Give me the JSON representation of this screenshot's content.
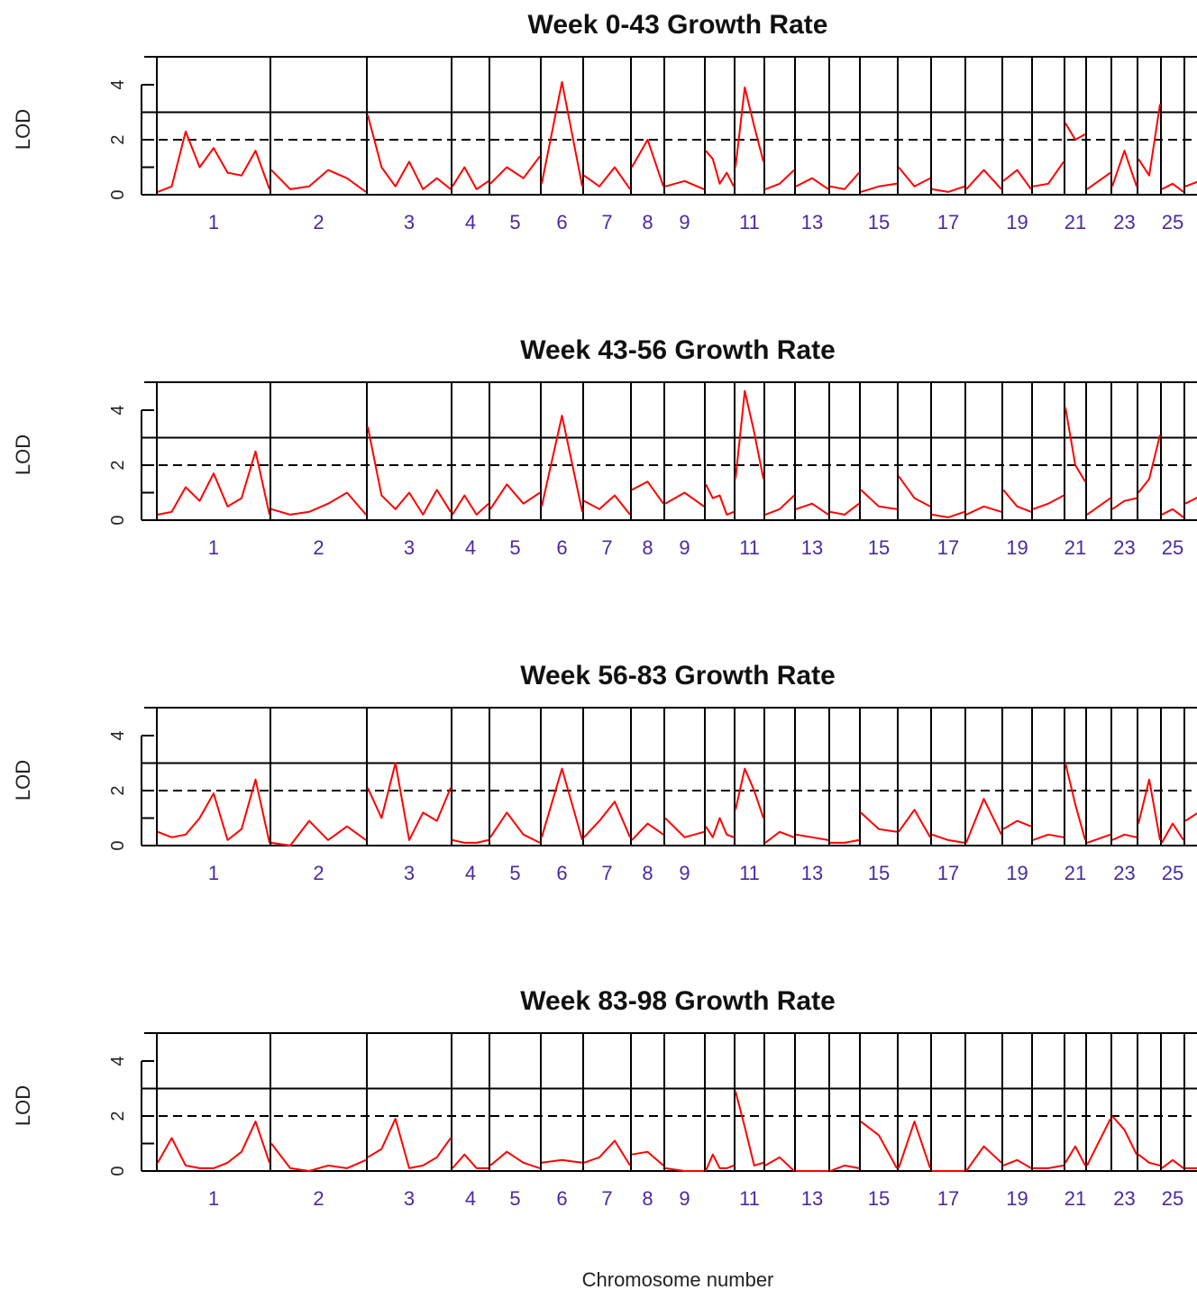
{
  "figure": {
    "xlabel": "Chromosome number"
  },
  "chart_data": [
    {
      "type": "line",
      "title": "Week 0-43 Growth Rate",
      "ylabel": "LOD",
      "ylim": [
        0,
        5
      ],
      "yticks": [
        0,
        2,
        4
      ],
      "thresholds": [
        {
          "value": 2,
          "style": "dashed"
        },
        {
          "value": 3,
          "style": "solid"
        }
      ],
      "chromosome_ticks": [
        "1",
        "2",
        "3",
        "4",
        "5",
        "6",
        "7",
        "8",
        "9",
        "11",
        "13",
        "15",
        "17",
        "19",
        "21",
        "23",
        "25"
      ],
      "color": "#ff0000",
      "peaks": [
        {
          "chr": 1,
          "lods": [
            0.1,
            0.3,
            2.3,
            1.0,
            1.7,
            0.8,
            0.7,
            1.6,
            0.2
          ]
        },
        {
          "chr": 2,
          "lods": [
            0.9,
            0.2,
            0.3,
            0.9,
            0.6,
            0.1
          ]
        },
        {
          "chr": 3,
          "lods": [
            2.9,
            1.0,
            0.3,
            1.2,
            0.2,
            0.6,
            0.2
          ]
        },
        {
          "chr": 4,
          "lods": [
            0.3,
            1.0,
            0.2,
            0.5
          ]
        },
        {
          "chr": 5,
          "lods": [
            0.4,
            1.0,
            0.6,
            1.4
          ]
        },
        {
          "chr": 6,
          "lods": [
            0.4,
            4.1,
            0.3
          ]
        },
        {
          "chr": 7,
          "lods": [
            0.7,
            0.3,
            1.0,
            0.2
          ]
        },
        {
          "chr": 8,
          "lods": [
            1.0,
            2.0,
            0.3
          ]
        },
        {
          "chr": 9,
          "lods": [
            0.3,
            0.5,
            0.2
          ]
        },
        {
          "chr": 10,
          "lods": [
            1.6,
            1.3,
            0.4,
            0.8,
            0.3
          ]
        },
        {
          "chr": 11,
          "lods": [
            1.0,
            3.9,
            2.5,
            1.2
          ]
        },
        {
          "chr": 12,
          "lods": [
            0.2,
            0.4,
            0.9
          ]
        },
        {
          "chr": 13,
          "lods": [
            0.3,
            0.6,
            0.2
          ]
        },
        {
          "chr": 14,
          "lods": [
            0.3,
            0.2,
            0.8
          ]
        },
        {
          "chr": 15,
          "lods": [
            0.1,
            0.3,
            0.4
          ]
        },
        {
          "chr": 16,
          "lods": [
            1.0,
            0.3,
            0.6
          ]
        },
        {
          "chr": 17,
          "lods": [
            0.2,
            0.1,
            0.3
          ]
        },
        {
          "chr": 18,
          "lods": [
            0.2,
            0.9,
            0.2
          ]
        },
        {
          "chr": 19,
          "lods": [
            0.5,
            0.9,
            0.2
          ]
        },
        {
          "chr": 20,
          "lods": [
            0.3,
            0.4,
            1.2
          ]
        },
        {
          "chr": 21,
          "lods": [
            2.6,
            2.0,
            2.2
          ]
        },
        {
          "chr": 22,
          "lods": [
            0.2,
            0.8
          ]
        },
        {
          "chr": 23,
          "lods": [
            0.3,
            1.6,
            0.3
          ]
        },
        {
          "chr": 24,
          "lods": [
            1.3,
            0.7,
            3.3
          ]
        },
        {
          "chr": 25,
          "lods": [
            0.2,
            0.4,
            0.1
          ]
        },
        {
          "chr": 26,
          "lods": [
            0.3,
            0.6
          ]
        }
      ]
    },
    {
      "type": "line",
      "title": "Week 43-56 Growth Rate",
      "ylabel": "LOD",
      "ylim": [
        0,
        5
      ],
      "yticks": [
        0,
        2,
        4
      ],
      "thresholds": [
        {
          "value": 2,
          "style": "dashed"
        },
        {
          "value": 3,
          "style": "solid"
        }
      ],
      "chromosome_ticks": [
        "1",
        "2",
        "3",
        "4",
        "5",
        "6",
        "7",
        "8",
        "9",
        "11",
        "13",
        "15",
        "17",
        "19",
        "21",
        "23",
        "25"
      ],
      "color": "#ff0000",
      "peaks": [
        {
          "chr": 1,
          "lods": [
            0.2,
            0.3,
            1.2,
            0.7,
            1.7,
            0.5,
            0.8,
            2.5,
            0.2
          ]
        },
        {
          "chr": 2,
          "lods": [
            0.4,
            0.2,
            0.3,
            0.6,
            1.0,
            0.2
          ]
        },
        {
          "chr": 3,
          "lods": [
            3.4,
            0.9,
            0.4,
            1.0,
            0.2,
            1.1,
            0.3
          ]
        },
        {
          "chr": 4,
          "lods": [
            0.2,
            0.9,
            0.2,
            0.6
          ]
        },
        {
          "chr": 5,
          "lods": [
            0.4,
            1.3,
            0.6,
            1.0
          ]
        },
        {
          "chr": 6,
          "lods": [
            0.5,
            3.8,
            0.3
          ]
        },
        {
          "chr": 7,
          "lods": [
            0.7,
            0.4,
            0.9,
            0.2
          ]
        },
        {
          "chr": 8,
          "lods": [
            1.1,
            1.4,
            0.6
          ]
        },
        {
          "chr": 9,
          "lods": [
            0.6,
            1.0,
            0.5
          ]
        },
        {
          "chr": 10,
          "lods": [
            1.3,
            0.8,
            0.9,
            0.2,
            0.3
          ]
        },
        {
          "chr": 11,
          "lods": [
            1.5,
            4.7,
            3.2,
            1.5
          ]
        },
        {
          "chr": 12,
          "lods": [
            0.2,
            0.4,
            0.9
          ]
        },
        {
          "chr": 13,
          "lods": [
            0.4,
            0.6,
            0.2
          ]
        },
        {
          "chr": 14,
          "lods": [
            0.3,
            0.2,
            0.6
          ]
        },
        {
          "chr": 15,
          "lods": [
            1.1,
            0.5,
            0.4
          ]
        },
        {
          "chr": 16,
          "lods": [
            1.6,
            0.8,
            0.5
          ]
        },
        {
          "chr": 17,
          "lods": [
            0.2,
            0.1,
            0.3
          ]
        },
        {
          "chr": 18,
          "lods": [
            0.2,
            0.5,
            0.3
          ]
        },
        {
          "chr": 19,
          "lods": [
            1.1,
            0.5,
            0.3
          ]
        },
        {
          "chr": 20,
          "lods": [
            0.4,
            0.6,
            0.9
          ]
        },
        {
          "chr": 21,
          "lods": [
            4.1,
            2.0,
            1.4
          ]
        },
        {
          "chr": 22,
          "lods": [
            0.2,
            0.8
          ]
        },
        {
          "chr": 23,
          "lods": [
            0.4,
            0.7,
            0.8
          ]
        },
        {
          "chr": 24,
          "lods": [
            1.0,
            1.5,
            3.1
          ]
        },
        {
          "chr": 25,
          "lods": [
            0.2,
            0.4,
            0.1
          ]
        },
        {
          "chr": 26,
          "lods": [
            0.6,
            1.0
          ]
        }
      ]
    },
    {
      "type": "line",
      "title": "Week 56-83 Growth Rate",
      "ylabel": "LOD",
      "ylim": [
        0,
        5
      ],
      "yticks": [
        0,
        2,
        4
      ],
      "thresholds": [
        {
          "value": 2,
          "style": "dashed"
        },
        {
          "value": 3,
          "style": "solid"
        }
      ],
      "chromosome_ticks": [
        "1",
        "2",
        "3",
        "4",
        "5",
        "6",
        "7",
        "8",
        "9",
        "11",
        "13",
        "15",
        "17",
        "19",
        "21",
        "23",
        "25"
      ],
      "color": "#ff0000",
      "peaks": [
        {
          "chr": 1,
          "lods": [
            0.5,
            0.3,
            0.4,
            1.0,
            1.9,
            0.2,
            0.6,
            2.4,
            0.1
          ]
        },
        {
          "chr": 2,
          "lods": [
            0.1,
            0.0,
            0.9,
            0.2,
            0.7,
            0.2
          ]
        },
        {
          "chr": 3,
          "lods": [
            2.1,
            1.0,
            3.0,
            0.2,
            1.2,
            0.9,
            2.1
          ]
        },
        {
          "chr": 4,
          "lods": [
            0.2,
            0.1,
            0.1,
            0.2
          ]
        },
        {
          "chr": 5,
          "lods": [
            0.3,
            1.2,
            0.4,
            0.1
          ]
        },
        {
          "chr": 6,
          "lods": [
            0.3,
            2.8,
            0.2
          ]
        },
        {
          "chr": 7,
          "lods": [
            0.3,
            0.9,
            1.6,
            0.3
          ]
        },
        {
          "chr": 8,
          "lods": [
            0.2,
            0.8,
            0.4
          ]
        },
        {
          "chr": 9,
          "lods": [
            1.0,
            0.3,
            0.5
          ]
        },
        {
          "chr": 10,
          "lods": [
            0.7,
            0.3,
            1.0,
            0.4,
            0.3
          ]
        },
        {
          "chr": 11,
          "lods": [
            1.3,
            2.8,
            2.0,
            1.0
          ]
        },
        {
          "chr": 12,
          "lods": [
            0.1,
            0.5,
            0.3
          ]
        },
        {
          "chr": 13,
          "lods": [
            0.4,
            0.3,
            0.2
          ]
        },
        {
          "chr": 14,
          "lods": [
            0.1,
            0.1,
            0.2
          ]
        },
        {
          "chr": 15,
          "lods": [
            1.2,
            0.6,
            0.5
          ]
        },
        {
          "chr": 16,
          "lods": [
            0.5,
            1.3,
            0.3
          ]
        },
        {
          "chr": 17,
          "lods": [
            0.4,
            0.2,
            0.1
          ]
        },
        {
          "chr": 18,
          "lods": [
            0.1,
            1.7,
            0.4
          ]
        },
        {
          "chr": 19,
          "lods": [
            0.6,
            0.9,
            0.7
          ]
        },
        {
          "chr": 20,
          "lods": [
            0.2,
            0.4,
            0.3
          ]
        },
        {
          "chr": 21,
          "lods": [
            3.0,
            1.5,
            0.2
          ]
        },
        {
          "chr": 22,
          "lods": [
            0.1,
            0.4
          ]
        },
        {
          "chr": 23,
          "lods": [
            0.2,
            0.4,
            0.3
          ]
        },
        {
          "chr": 24,
          "lods": [
            0.8,
            2.4,
            0.2
          ]
        },
        {
          "chr": 25,
          "lods": [
            0.1,
            0.8,
            0.2
          ]
        },
        {
          "chr": 26,
          "lods": [
            0.9,
            1.4
          ]
        }
      ]
    },
    {
      "type": "line",
      "title": "Week 83-98 Growth Rate",
      "ylabel": "LOD",
      "ylim": [
        0,
        5
      ],
      "yticks": [
        0,
        2,
        4
      ],
      "thresholds": [
        {
          "value": 2,
          "style": "dashed"
        },
        {
          "value": 3,
          "style": "solid"
        }
      ],
      "chromosome_ticks": [
        "1",
        "2",
        "3",
        "4",
        "5",
        "6",
        "7",
        "8",
        "9",
        "11",
        "13",
        "15",
        "17",
        "19",
        "21",
        "23",
        "25"
      ],
      "color": "#ff0000",
      "peaks": [
        {
          "chr": 1,
          "lods": [
            0.3,
            1.2,
            0.2,
            0.1,
            0.1,
            0.3,
            0.7,
            1.8,
            0.3
          ]
        },
        {
          "chr": 2,
          "lods": [
            1.0,
            0.1,
            0.0,
            0.2,
            0.1,
            0.4
          ]
        },
        {
          "chr": 3,
          "lods": [
            0.5,
            0.8,
            1.9,
            0.1,
            0.2,
            0.5,
            1.2
          ]
        },
        {
          "chr": 4,
          "lods": [
            0.1,
            0.6,
            0.1,
            0.1
          ]
        },
        {
          "chr": 5,
          "lods": [
            0.2,
            0.7,
            0.3,
            0.1
          ]
        },
        {
          "chr": 6,
          "lods": [
            0.3,
            0.4,
            0.3
          ]
        },
        {
          "chr": 7,
          "lods": [
            0.3,
            0.5,
            1.1,
            0.2
          ]
        },
        {
          "chr": 8,
          "lods": [
            0.6,
            0.7,
            0.2
          ]
        },
        {
          "chr": 9,
          "lods": [
            0.1,
            0.0,
            0.0
          ]
        },
        {
          "chr": 10,
          "lods": [
            0.0,
            0.6,
            0.1,
            0.1,
            0.2
          ]
        },
        {
          "chr": 11,
          "lods": [
            2.9,
            1.6,
            0.2,
            0.3
          ]
        },
        {
          "chr": 12,
          "lods": [
            0.2,
            0.5,
            0.0
          ]
        },
        {
          "chr": 13,
          "lods": [
            0.0,
            0.0,
            0.0
          ]
        },
        {
          "chr": 14,
          "lods": [
            0.0,
            0.2,
            0.1
          ]
        },
        {
          "chr": 15,
          "lods": [
            1.8,
            1.3,
            0.1
          ]
        },
        {
          "chr": 16,
          "lods": [
            0.1,
            1.8,
            0.1
          ]
        },
        {
          "chr": 17,
          "lods": [
            0.0,
            0.0,
            0.0
          ]
        },
        {
          "chr": 18,
          "lods": [
            0.0,
            0.9,
            0.3
          ]
        },
        {
          "chr": 19,
          "lods": [
            0.2,
            0.4,
            0.1
          ]
        },
        {
          "chr": 20,
          "lods": [
            0.1,
            0.1,
            0.2
          ]
        },
        {
          "chr": 21,
          "lods": [
            0.3,
            0.9,
            0.2
          ]
        },
        {
          "chr": 22,
          "lods": [
            0.2,
            1.9
          ]
        },
        {
          "chr": 23,
          "lods": [
            2.0,
            1.5,
            0.6
          ]
        },
        {
          "chr": 24,
          "lods": [
            0.6,
            0.3,
            0.2
          ]
        },
        {
          "chr": 25,
          "lods": [
            0.1,
            0.4,
            0.1
          ]
        },
        {
          "chr": 26,
          "lods": [
            0.1,
            0.1
          ]
        }
      ]
    }
  ]
}
